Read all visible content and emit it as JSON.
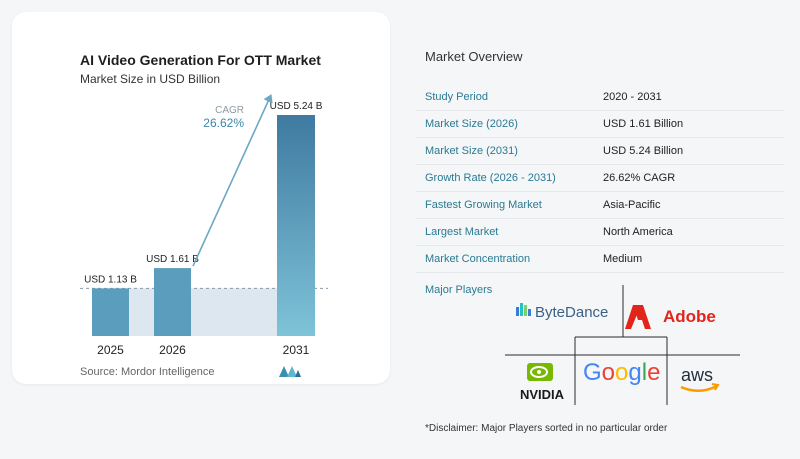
{
  "chart_data": {
    "type": "bar",
    "title": "AI Video Generation For OTT Market",
    "subtitle": "Market Size in USD Billion",
    "categories": [
      "2025",
      "2026",
      "2031"
    ],
    "values": [
      1.13,
      1.61,
      5.24
    ],
    "data_labels": [
      "USD 1.13 B",
      "USD 1.61 B",
      "USD 5.24 B"
    ],
    "cagr_label": "CAGR",
    "cagr_value": "26.62%",
    "ylim": [
      0,
      5.24
    ],
    "colors": {
      "bar": "#5b9dbd",
      "bar_dark": "#3f7aa0",
      "bar_light": "#7ec3d8",
      "shade": "#dde7ef",
      "arrow": "#6ba8c6"
    }
  },
  "source": "Source:  Mordor Intelligence",
  "overview": {
    "title": "Market Overview",
    "rows": [
      {
        "key": "Study Period",
        "value": "2020 - 2031"
      },
      {
        "key": "Market Size (2026)",
        "value": "USD 1.61 Billion"
      },
      {
        "key": "Market Size (2031)",
        "value": "USD 5.24 Billion"
      },
      {
        "key": "Growth Rate (2026 - 2031)",
        "value": "26.62% CAGR"
      },
      {
        "key": "Fastest Growing Market",
        "value": "Asia-Pacific"
      },
      {
        "key": "Largest Market",
        "value": "North America"
      },
      {
        "key": "Market Concentration",
        "value": "Medium"
      }
    ]
  },
  "players": {
    "title": "Major Players",
    "names": [
      "ByteDance",
      "Adobe",
      "NVIDIA",
      "Google",
      "aws"
    ]
  },
  "disclaimer": "*Disclaimer: Major Players sorted in no particular order"
}
